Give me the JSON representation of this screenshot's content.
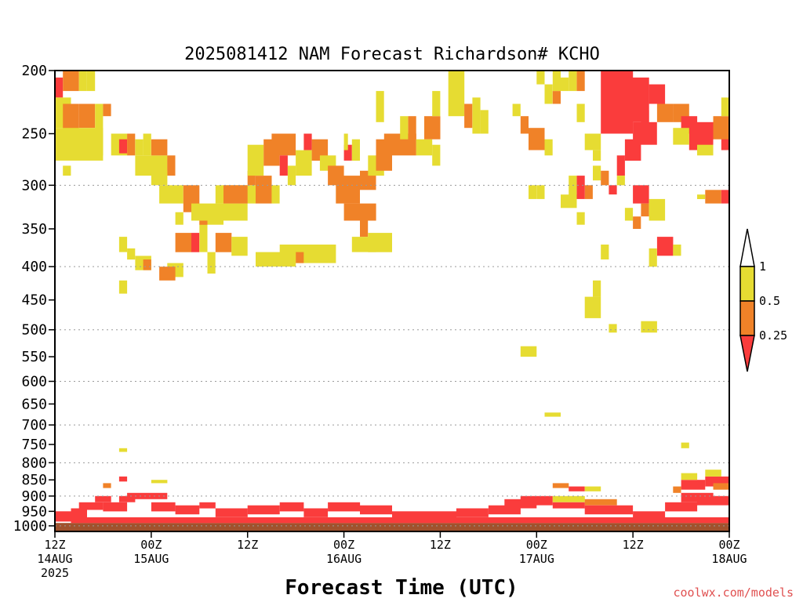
{
  "chart_data": {
    "type": "heatmap",
    "title": "2025081412 NAM Forecast Richardson# KCHO",
    "xlabel": "Forecast Time (UTC)",
    "ylabel": "",
    "credit": "coolwx.com/models",
    "x_range_hours": [
      0,
      84
    ],
    "y_scale": "log",
    "y_range_hPa": [
      200,
      1020
    ],
    "y_ticks": [
      "200",
      "250",
      "300",
      "350",
      "400",
      "450",
      "500",
      "550",
      "600",
      "650",
      "700",
      "750",
      "800",
      "850",
      "900",
      "950",
      "1000"
    ],
    "x_ticks": [
      {
        "hour": 0,
        "line1": "12Z",
        "line2": "14AUG",
        "line3": "2025"
      },
      {
        "hour": 12,
        "line1": "00Z",
        "line2": "15AUG",
        "line3": ""
      },
      {
        "hour": 24,
        "line1": "12Z",
        "line2": "",
        "line3": ""
      },
      {
        "hour": 36,
        "line1": "00Z",
        "line2": "16AUG",
        "line3": ""
      },
      {
        "hour": 48,
        "line1": "12Z",
        "line2": "",
        "line3": ""
      },
      {
        "hour": 60,
        "line1": "00Z",
        "line2": "17AUG",
        "line3": ""
      },
      {
        "hour": 72,
        "line1": "12Z",
        "line2": "",
        "line3": ""
      },
      {
        "hour": 84,
        "line1": "00Z",
        "line2": "18AUG",
        "line3": ""
      }
    ],
    "gridlines_hPa": [
      300,
      400,
      500,
      600,
      700,
      800,
      900,
      1000
    ],
    "ground_color": "#a0522d",
    "legend": {
      "placement": "right",
      "levels": [
        {
          "label": "1",
          "color": "#ffffff"
        },
        {
          "label": "0.5",
          "color": "#e6dc32"
        },
        {
          "label": "0.25",
          "color": "#f08228"
        },
        {
          "label": "",
          "color": "#fa3c3c"
        }
      ],
      "labels": [
        "1",
        "0.5",
        "0.25"
      ]
    },
    "colors": {
      "ri_gt1": "#ffffff",
      "ri_05_1": "#e6dc32",
      "ri_025_05": "#f08228",
      "ri_lt025": "#fa3c3c"
    },
    "cells": [
      [
        0,
        1,
        205,
        220,
        "R"
      ],
      [
        1,
        3,
        200,
        215,
        "O"
      ],
      [
        3,
        4,
        200,
        215,
        "Y"
      ],
      [
        4,
        5,
        200,
        215,
        "Y"
      ],
      [
        0,
        2,
        220,
        245,
        "Y"
      ],
      [
        1,
        3,
        225,
        250,
        "O"
      ],
      [
        3,
        5,
        225,
        245,
        "O"
      ],
      [
        5,
        6,
        225,
        250,
        "Y"
      ],
      [
        0,
        6,
        245,
        275,
        "Y"
      ],
      [
        2,
        6,
        250,
        270,
        "Y"
      ],
      [
        6,
        7,
        225,
        235,
        "O"
      ],
      [
        1,
        2,
        280,
        290,
        "Y"
      ],
      [
        7,
        9,
        250,
        270,
        "Y"
      ],
      [
        8,
        9,
        255,
        268,
        "R"
      ],
      [
        9,
        10,
        250,
        270,
        "O"
      ],
      [
        10,
        11,
        255,
        270,
        "Y"
      ],
      [
        10,
        14,
        270,
        290,
        "Y"
      ],
      [
        11,
        12,
        250,
        270,
        "Y"
      ],
      [
        12,
        14,
        255,
        270,
        "O"
      ],
      [
        14,
        15,
        270,
        290,
        "O"
      ],
      [
        12,
        14,
        285,
        300,
        "Y"
      ],
      [
        13,
        16,
        300,
        320,
        "Y"
      ],
      [
        16,
        18,
        300,
        330,
        "O"
      ],
      [
        15,
        16,
        330,
        345,
        "Y"
      ],
      [
        15,
        17,
        355,
        380,
        "O"
      ],
      [
        17,
        18,
        355,
        380,
        "R"
      ],
      [
        18,
        19,
        340,
        380,
        "Y"
      ],
      [
        18,
        19,
        325,
        345,
        "O"
      ],
      [
        19,
        21,
        320,
        345,
        "Y"
      ],
      [
        20,
        22,
        355,
        380,
        "O"
      ],
      [
        19,
        20,
        380,
        410,
        "Y"
      ],
      [
        22,
        24,
        360,
        385,
        "Y"
      ],
      [
        17,
        19,
        320,
        340,
        "Y"
      ],
      [
        21,
        24,
        320,
        340,
        "Y"
      ],
      [
        20,
        25,
        300,
        320,
        "Y"
      ],
      [
        21,
        24,
        300,
        320,
        "O"
      ],
      [
        24,
        25,
        285,
        300,
        "O"
      ],
      [
        25,
        27,
        290,
        320,
        "O"
      ],
      [
        27,
        28,
        300,
        320,
        "Y"
      ],
      [
        24,
        26,
        260,
        290,
        "Y"
      ],
      [
        26,
        28,
        255,
        280,
        "O"
      ],
      [
        27,
        30,
        250,
        270,
        "O"
      ],
      [
        28,
        29,
        270,
        290,
        "R"
      ],
      [
        29,
        30,
        280,
        300,
        "Y"
      ],
      [
        30,
        32,
        265,
        290,
        "Y"
      ],
      [
        31,
        32,
        250,
        265,
        "R"
      ],
      [
        32,
        34,
        255,
        275,
        "O"
      ],
      [
        33,
        35,
        270,
        285,
        "Y"
      ],
      [
        34,
        36,
        280,
        300,
        "O"
      ],
      [
        35,
        38,
        290,
        320,
        "O"
      ],
      [
        38,
        40,
        285,
        305,
        "O"
      ],
      [
        39,
        41,
        270,
        290,
        "Y"
      ],
      [
        40,
        42,
        255,
        285,
        "O"
      ],
      [
        41,
        45,
        250,
        270,
        "O"
      ],
      [
        45,
        47,
        255,
        270,
        "Y"
      ],
      [
        44,
        45,
        235,
        255,
        "O"
      ],
      [
        46,
        48,
        235,
        255,
        "O"
      ],
      [
        47,
        48,
        260,
        280,
        "Y"
      ],
      [
        36,
        37,
        260,
        275,
        "R"
      ],
      [
        37,
        38,
        255,
        275,
        "Y"
      ],
      [
        36,
        40,
        320,
        340,
        "O"
      ],
      [
        38,
        39,
        340,
        360,
        "O"
      ],
      [
        37,
        40,
        360,
        380,
        "Y"
      ],
      [
        39,
        42,
        355,
        380,
        "Y"
      ],
      [
        28,
        35,
        370,
        395,
        "Y"
      ],
      [
        30,
        31,
        380,
        395,
        "O"
      ],
      [
        25,
        30,
        380,
        400,
        "Y"
      ],
      [
        9,
        10,
        375,
        390,
        "Y"
      ],
      [
        8,
        9,
        360,
        380,
        "Y"
      ],
      [
        10,
        12,
        385,
        405,
        "Y"
      ],
      [
        11,
        12,
        390,
        405,
        "O"
      ],
      [
        8,
        9,
        420,
        440,
        "Y"
      ],
      [
        14,
        16,
        395,
        415,
        "Y"
      ],
      [
        13,
        15,
        400,
        420,
        "O"
      ],
      [
        36,
        36.5,
        250,
        265,
        "Y"
      ],
      [
        40,
        41,
        215,
        240,
        "Y"
      ],
      [
        43,
        44,
        235,
        255,
        "Y"
      ],
      [
        47,
        48,
        215,
        235,
        "Y"
      ],
      [
        49,
        51,
        200,
        235,
        "Y"
      ],
      [
        51,
        52,
        225,
        245,
        "O"
      ],
      [
        52,
        53,
        220,
        250,
        "Y"
      ],
      [
        53,
        54,
        230,
        250,
        "Y"
      ],
      [
        57,
        58,
        225,
        235,
        "Y"
      ],
      [
        58,
        59,
        235,
        250,
        "O"
      ],
      [
        59,
        61,
        245,
        265,
        "O"
      ],
      [
        61,
        62,
        255,
        270,
        "Y"
      ],
      [
        60,
        61,
        200,
        210,
        "Y"
      ],
      [
        61,
        62,
        210,
        225,
        "Y"
      ],
      [
        62,
        63,
        215,
        225,
        "O"
      ],
      [
        62,
        63,
        200,
        215,
        "Y"
      ],
      [
        63,
        64,
        205,
        215,
        "Y"
      ],
      [
        64,
        65,
        200,
        215,
        "Y"
      ],
      [
        65,
        66,
        200,
        215,
        "O"
      ],
      [
        65,
        66,
        225,
        240,
        "Y"
      ],
      [
        66,
        68,
        250,
        265,
        "Y"
      ],
      [
        67,
        68,
        265,
        275,
        "Y"
      ],
      [
        68,
        72,
        200,
        250,
        "R"
      ],
      [
        70,
        74,
        205,
        240,
        "R"
      ],
      [
        72,
        75,
        240,
        260,
        "R"
      ],
      [
        71,
        73,
        255,
        275,
        "R"
      ],
      [
        73,
        74,
        230,
        250,
        "R"
      ],
      [
        74,
        76,
        210,
        225,
        "R"
      ],
      [
        75,
        77,
        225,
        240,
        "O"
      ],
      [
        77,
        79,
        225,
        240,
        "O"
      ],
      [
        78,
        80,
        235,
        250,
        "R"
      ],
      [
        79,
        80,
        250,
        265,
        "R"
      ],
      [
        77,
        79,
        245,
        260,
        "Y"
      ],
      [
        80,
        82,
        255,
        270,
        "Y"
      ],
      [
        80,
        82,
        240,
        260,
        "R"
      ],
      [
        83,
        84,
        250,
        265,
        "R"
      ],
      [
        82,
        84,
        235,
        255,
        "O"
      ],
      [
        83,
        84,
        220,
        235,
        "Y"
      ],
      [
        72,
        74,
        300,
        320,
        "R"
      ],
      [
        73,
        74,
        320,
        335,
        "O"
      ],
      [
        71,
        72,
        325,
        340,
        "Y"
      ],
      [
        74,
        76,
        315,
        340,
        "Y"
      ],
      [
        72,
        73,
        335,
        350,
        "O"
      ],
      [
        75,
        77,
        360,
        385,
        "R"
      ],
      [
        77,
        78,
        370,
        385,
        "Y"
      ],
      [
        74,
        75,
        375,
        400,
        "Y"
      ],
      [
        81,
        83,
        305,
        320,
        "O"
      ],
      [
        83,
        84,
        305,
        320,
        "R"
      ],
      [
        80,
        81,
        310,
        315,
        "Y"
      ],
      [
        66,
        67,
        300,
        315,
        "O"
      ],
      [
        65,
        66,
        290,
        315,
        "R"
      ],
      [
        64,
        65,
        290,
        315,
        "Y"
      ],
      [
        63,
        65,
        310,
        325,
        "Y"
      ],
      [
        67,
        68,
        280,
        295,
        "Y"
      ],
      [
        68,
        69,
        285,
        300,
        "O"
      ],
      [
        69,
        70,
        300,
        310,
        "R"
      ],
      [
        70,
        71,
        270,
        290,
        "R"
      ],
      [
        70,
        71,
        290,
        300,
        "Y"
      ],
      [
        59,
        60,
        300,
        315,
        "Y"
      ],
      [
        60,
        61,
        300,
        315,
        "Y"
      ],
      [
        65,
        66,
        330,
        345,
        "Y"
      ],
      [
        68,
        69,
        370,
        390,
        "Y"
      ],
      [
        66,
        68,
        445,
        480,
        "Y"
      ],
      [
        67,
        68,
        420,
        445,
        "Y"
      ],
      [
        69,
        70,
        490,
        505,
        "Y"
      ],
      [
        73,
        75,
        485,
        505,
        "Y"
      ],
      [
        58,
        60,
        530,
        550,
        "Y"
      ],
      [
        61,
        63,
        670,
        680,
        "Y"
      ],
      [
        8,
        9,
        760,
        770,
        "Y"
      ],
      [
        78,
        79,
        745,
        760,
        "Y"
      ],
      [
        0,
        84,
        990,
        1020,
        "G"
      ],
      [
        2,
        4,
        940,
        960,
        "R"
      ],
      [
        3,
        6,
        920,
        945,
        "R"
      ],
      [
        5,
        7,
        900,
        920,
        "R"
      ],
      [
        6,
        9,
        920,
        950,
        "R"
      ],
      [
        8,
        10,
        900,
        920,
        "R"
      ],
      [
        9,
        14,
        890,
        910,
        "R"
      ],
      [
        12,
        15,
        920,
        950,
        "R"
      ],
      [
        15,
        18,
        930,
        960,
        "R"
      ],
      [
        18,
        20,
        920,
        940,
        "R"
      ],
      [
        20,
        24,
        940,
        970,
        "R"
      ],
      [
        24,
        28,
        930,
        960,
        "R"
      ],
      [
        28,
        31,
        920,
        950,
        "R"
      ],
      [
        31,
        34,
        940,
        970,
        "R"
      ],
      [
        34,
        38,
        920,
        950,
        "R"
      ],
      [
        38,
        42,
        930,
        960,
        "R"
      ],
      [
        42,
        46,
        950,
        975,
        "R"
      ],
      [
        46,
        50,
        950,
        980,
        "R"
      ],
      [
        50,
        54,
        940,
        970,
        "R"
      ],
      [
        54,
        58,
        930,
        960,
        "R"
      ],
      [
        56,
        60,
        910,
        940,
        "R"
      ],
      [
        58,
        62,
        900,
        930,
        "R"
      ],
      [
        62,
        66,
        900,
        920,
        "Y"
      ],
      [
        62,
        66,
        920,
        940,
        "R"
      ],
      [
        66,
        70,
        910,
        930,
        "O"
      ],
      [
        66,
        72,
        930,
        960,
        "R"
      ],
      [
        72,
        76,
        950,
        980,
        "R"
      ],
      [
        76,
        80,
        920,
        950,
        "R"
      ],
      [
        78,
        82,
        890,
        920,
        "R"
      ],
      [
        80,
        84,
        900,
        930,
        "R"
      ],
      [
        78,
        81,
        850,
        880,
        "R"
      ],
      [
        81,
        84,
        840,
        870,
        "R"
      ],
      [
        82,
        84,
        860,
        880,
        "O"
      ],
      [
        78,
        80,
        830,
        850,
        "Y"
      ],
      [
        81,
        83,
        820,
        840,
        "Y"
      ],
      [
        77,
        78,
        870,
        890,
        "O"
      ],
      [
        64,
        66,
        870,
        885,
        "R"
      ],
      [
        62,
        64,
        860,
        875,
        "O"
      ],
      [
        66,
        68,
        870,
        885,
        "Y"
      ],
      [
        8,
        9,
        840,
        855,
        "R"
      ],
      [
        6,
        7,
        860,
        875,
        "O"
      ],
      [
        12,
        14,
        850,
        860,
        "Y"
      ],
      [
        0,
        4,
        950,
        985,
        "R"
      ],
      [
        2,
        84,
        970,
        990,
        "R"
      ]
    ]
  }
}
